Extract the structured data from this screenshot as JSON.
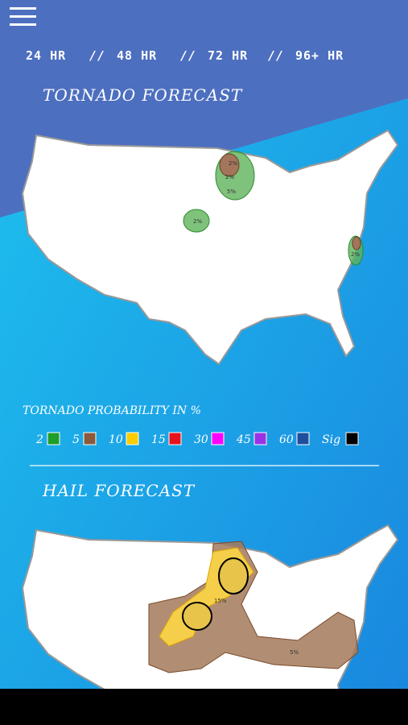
{
  "tabs": {
    "items": [
      "24 HR",
      "48 HR",
      "72 HR",
      "96+ HR"
    ],
    "separator": "//",
    "active": 0
  },
  "tornado": {
    "title": "TORNADO FORECAST",
    "map_labels": [
      "2%",
      "5%",
      "2%",
      "2%",
      "2%"
    ]
  },
  "legend": {
    "title": "TORNADO PROBABILITY IN %",
    "items": [
      {
        "label": "2",
        "color": "#1e9e2a"
      },
      {
        "label": "5",
        "color": "#8b5a3a"
      },
      {
        "label": "10",
        "color": "#ffcc00"
      },
      {
        "label": "15",
        "color": "#e8131b"
      },
      {
        "label": "30",
        "color": "#ff00ff"
      },
      {
        "label": "45",
        "color": "#9932e6"
      },
      {
        "label": "60",
        "color": "#1f4e9c"
      },
      {
        "label": "Sig",
        "color": "#000000"
      }
    ]
  },
  "hail": {
    "title": "HAIL FORECAST",
    "map_labels": [
      "15%",
      "5%"
    ]
  }
}
